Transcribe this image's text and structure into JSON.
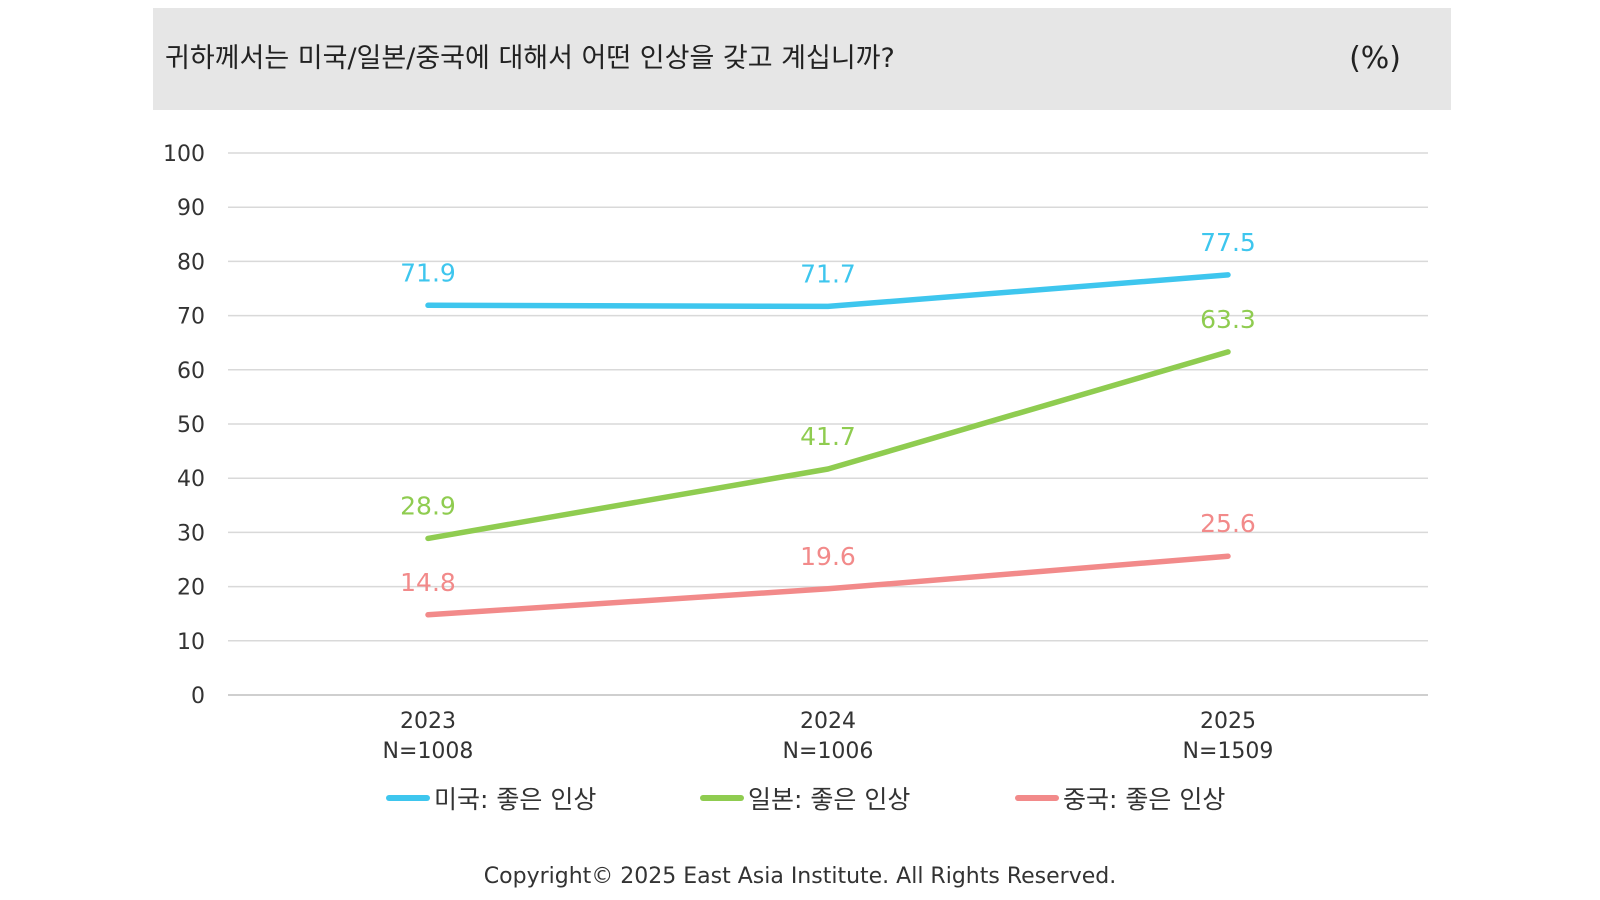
{
  "header": {
    "title": "귀하께서는 미국/일본/중국에 대해서 어떤 인상을 갖고 계십니까?",
    "unit": "(%)"
  },
  "chart_data": {
    "type": "line",
    "categories": [
      "2023",
      "2024",
      "2025"
    ],
    "category_sublabels": [
      "N=1008",
      "N=1006",
      "N=1509"
    ],
    "ylim": [
      0,
      100
    ],
    "yticks": [
      0,
      10,
      20,
      30,
      40,
      50,
      60,
      70,
      80,
      90,
      100
    ],
    "grid": true,
    "legend_position": "bottom",
    "series": [
      {
        "name": "미국: 좋은 인상",
        "values": [
          71.9,
          71.7,
          77.5
        ],
        "color": "#3ec6ee",
        "labels": [
          "71.9",
          "71.7",
          "77.5"
        ]
      },
      {
        "name": "일본: 좋은 인상",
        "values": [
          28.9,
          41.7,
          63.3
        ],
        "color": "#8fcc50",
        "labels": [
          "28.9",
          "41.7",
          "63.3"
        ]
      },
      {
        "name": "중국: 좋은 인상",
        "values": [
          14.8,
          19.6,
          25.6
        ],
        "color": "#f28a8a",
        "labels": [
          "14.8",
          "19.6",
          "25.6"
        ]
      }
    ]
  },
  "footer": {
    "copyright": "Copyright© 2025 East Asia Institute. All Rights Reserved."
  }
}
